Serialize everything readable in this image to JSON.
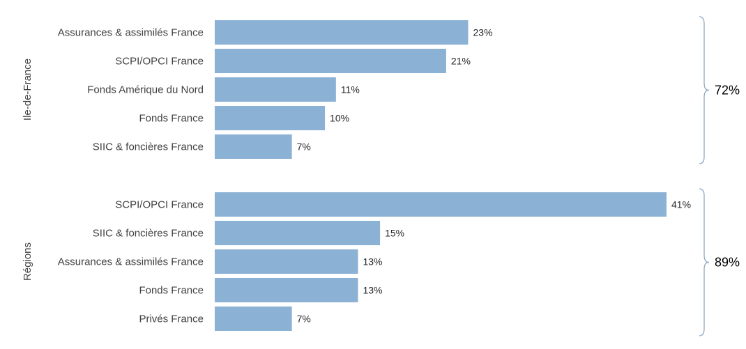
{
  "chart_data": {
    "type": "bar",
    "orientation": "horizontal",
    "bar_color": "#8bb1d4",
    "brace_color": "#8fa9c4",
    "groups": [
      {
        "name": "Ile-de-France",
        "total": "72%",
        "categories": [
          "Assurances & assimilés France",
          "SCPI/OPCI France",
          "Fonds Amérique du Nord",
          "Fonds France",
          "SIIC & foncières France"
        ],
        "values": [
          23,
          21,
          11,
          10,
          7
        ],
        "labels": [
          "23%",
          "21%",
          "11%",
          "10%",
          "7%"
        ]
      },
      {
        "name": "Régions",
        "total": "89%",
        "categories": [
          "SCPI/OPCI France",
          "SIIC & foncières France",
          "Assurances & assimilés France",
          "Fonds France",
          "Privés France"
        ],
        "values": [
          41,
          15,
          13,
          13,
          7
        ],
        "labels": [
          "41%",
          "15%",
          "13%",
          "13%",
          "7%"
        ]
      }
    ],
    "xlim": [
      0,
      41
    ],
    "grid": false,
    "legend": "none"
  }
}
